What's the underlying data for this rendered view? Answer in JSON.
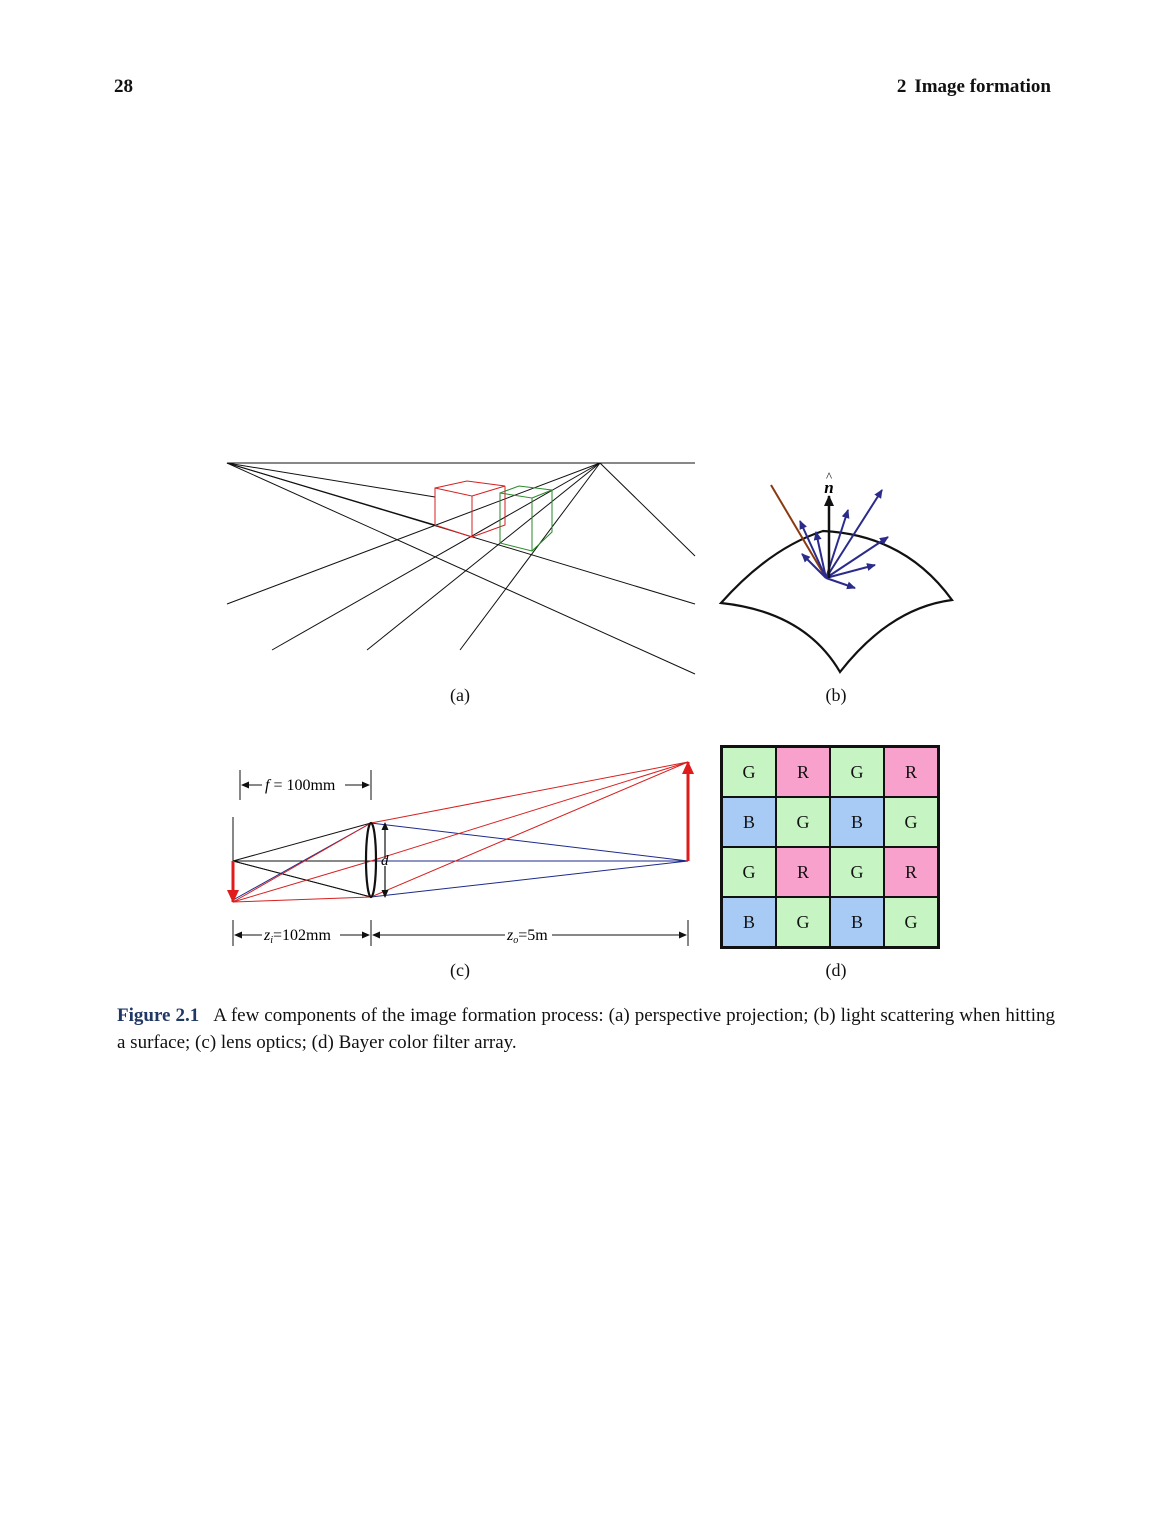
{
  "header": {
    "page_number": "28",
    "chapter_number": "2",
    "chapter_title": "Image formation"
  },
  "figure": {
    "sublabels": {
      "a": "(a)",
      "b": "(b)",
      "c": "(c)",
      "d": "(d)"
    },
    "panel_b": {
      "normal_symbol": "n",
      "hat": "^"
    },
    "panel_c": {
      "focal_label_var": "f",
      "focal_label_value": " = 100mm",
      "aperture_label": "d",
      "zi_var": "z",
      "zi_sub": "i",
      "zi_value": "=102mm",
      "zo_var": "z",
      "zo_sub": "o",
      "zo_value": "=5m"
    },
    "panel_d": {
      "cells": [
        [
          "G",
          "R",
          "G",
          "R"
        ],
        [
          "B",
          "G",
          "B",
          "G"
        ],
        [
          "G",
          "R",
          "G",
          "R"
        ],
        [
          "B",
          "G",
          "B",
          "G"
        ]
      ],
      "colors": {
        "G": "#c6f5c3",
        "R": "#f7a1cc",
        "B": "#a8cbf5"
      }
    },
    "colors": {
      "red_edge": "#d62020",
      "green_edge": "#2a8a2a",
      "arrow_blue": "#2b2b8c",
      "ray_brown": "#8b3a10",
      "object_red": "#e01b1b"
    }
  },
  "caption": {
    "label": "Figure 2.1",
    "text": "A few components of the image formation process: (a) perspective projection; (b) light scattering when hitting a surface; (c) lens optics; (d) Bayer color filter array."
  }
}
